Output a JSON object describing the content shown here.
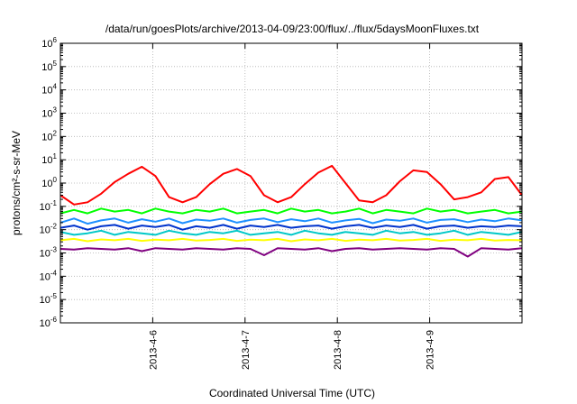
{
  "chart_data": {
    "type": "line",
    "title": "/data/run/goesPlots/archive/2013-04-09/23:00/flux/../flux/5daysMoonFluxes.txt",
    "xlabel": "Coordinated Universal Time (UTC)",
    "ylabel": "protons/cm²-s-sr-MeV",
    "y_scale": "log",
    "ylim": [
      1e-06,
      1000000.0
    ],
    "y_ticks": [
      -6,
      -5,
      -4,
      -3,
      -2,
      -1,
      0,
      1,
      2,
      3,
      4,
      5,
      6
    ],
    "xlim": [
      "2013-04-05 00:00",
      "2013-04-10 00:00"
    ],
    "x_ticks": [
      "2013-4-6",
      "2013-4-7",
      "2013-4-8",
      "2013-4-9"
    ],
    "grid": true,
    "series": [
      {
        "color": "#ff0000",
        "values": [
          0.3,
          0.12,
          0.15,
          0.35,
          1.1,
          2.5,
          5.0,
          2.0,
          0.25,
          0.15,
          0.25,
          0.9,
          2.5,
          4.0,
          2.0,
          0.3,
          0.15,
          0.25,
          0.9,
          2.8,
          5.5,
          1.0,
          0.18,
          0.15,
          0.3,
          1.2,
          3.5,
          3.0,
          0.9,
          0.2,
          0.25,
          0.4,
          1.5,
          1.8,
          0.3
        ]
      },
      {
        "color": "#00ff00",
        "values": [
          0.05,
          0.07,
          0.05,
          0.08,
          0.06,
          0.07,
          0.05,
          0.08,
          0.06,
          0.05,
          0.07,
          0.06,
          0.08,
          0.05,
          0.06,
          0.07,
          0.05,
          0.08,
          0.06,
          0.07,
          0.05,
          0.06,
          0.08,
          0.05,
          0.07,
          0.06,
          0.05,
          0.08,
          0.06,
          0.07,
          0.05,
          0.06,
          0.07,
          0.05,
          0.06
        ]
      },
      {
        "color": "#1e90ff",
        "values": [
          0.02,
          0.03,
          0.018,
          0.025,
          0.03,
          0.02,
          0.028,
          0.022,
          0.03,
          0.019,
          0.027,
          0.024,
          0.03,
          0.02,
          0.026,
          0.03,
          0.021,
          0.028,
          0.023,
          0.03,
          0.02,
          0.025,
          0.029,
          0.019,
          0.027,
          0.024,
          0.03,
          0.02,
          0.026,
          0.028,
          0.021,
          0.027,
          0.023,
          0.03,
          0.025
        ]
      },
      {
        "color": "#0033cc",
        "values": [
          0.012,
          0.015,
          0.01,
          0.014,
          0.016,
          0.011,
          0.015,
          0.013,
          0.016,
          0.01,
          0.014,
          0.012,
          0.016,
          0.011,
          0.015,
          0.013,
          0.016,
          0.012,
          0.014,
          0.015,
          0.011,
          0.014,
          0.016,
          0.012,
          0.015,
          0.013,
          0.016,
          0.011,
          0.014,
          0.015,
          0.012,
          0.014,
          0.013,
          0.015,
          0.014
        ]
      },
      {
        "color": "#00c8c8",
        "values": [
          0.008,
          0.006,
          0.007,
          0.009,
          0.006,
          0.008,
          0.007,
          0.006,
          0.009,
          0.007,
          0.006,
          0.008,
          0.007,
          0.009,
          0.006,
          0.007,
          0.008,
          0.006,
          0.009,
          0.007,
          0.006,
          0.008,
          0.007,
          0.006,
          0.009,
          0.007,
          0.008,
          0.006,
          0.007,
          0.009,
          0.006,
          0.008,
          0.007,
          0.006,
          0.008
        ]
      },
      {
        "color": "#ffff00",
        "values": [
          0.0035,
          0.004,
          0.0032,
          0.0038,
          0.0035,
          0.004,
          0.0033,
          0.0037,
          0.0035,
          0.004,
          0.0034,
          0.0036,
          0.004,
          0.0033,
          0.0037,
          0.0035,
          0.004,
          0.0032,
          0.0038,
          0.0035,
          0.004,
          0.0033,
          0.0037,
          0.0035,
          0.004,
          0.0034,
          0.0036,
          0.004,
          0.0033,
          0.0037,
          0.0035,
          0.004,
          0.0034,
          0.0036,
          0.0035
        ]
      },
      {
        "color": "#800080",
        "values": [
          0.0015,
          0.0014,
          0.0016,
          0.0015,
          0.0014,
          0.0016,
          0.0012,
          0.0016,
          0.0015,
          0.0014,
          0.0016,
          0.0015,
          0.0014,
          0.0016,
          0.0015,
          0.0008,
          0.0016,
          0.0015,
          0.0014,
          0.0016,
          0.0012,
          0.0015,
          0.0016,
          0.0014,
          0.0015,
          0.0016,
          0.0015,
          0.0014,
          0.0016,
          0.0015,
          0.0007,
          0.0016,
          0.0015,
          0.0014,
          0.0016
        ]
      }
    ]
  }
}
